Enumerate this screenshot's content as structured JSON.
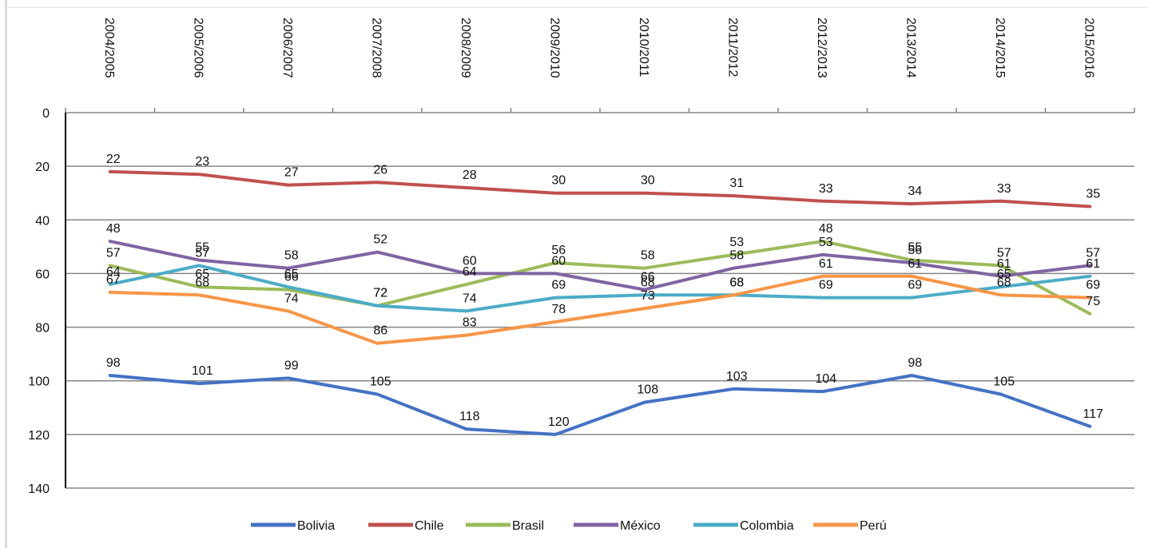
{
  "chart_data": {
    "type": "line",
    "title": "",
    "xlabel": "",
    "ylabel": "",
    "categories": [
      "2004/2005",
      "2005/2006",
      "2006/2007",
      "2007/2008",
      "2008/2009",
      "2009/2010",
      "2010/2011",
      "2011/2012",
      "2012/2013",
      "2013/2014",
      "2014/2015",
      "2015/2016"
    ],
    "ylim": [
      0,
      140
    ],
    "y_axis_reversed": true,
    "y_ticks": [
      0,
      20,
      40,
      60,
      80,
      100,
      120,
      140
    ],
    "grid": "horizontal",
    "legend_position": "bottom",
    "series": [
      {
        "name": "Bolivia",
        "color": "#4472c4",
        "values": [
          98,
          101,
          99,
          105,
          118,
          120,
          108,
          103,
          104,
          98,
          105,
          117
        ]
      },
      {
        "name": "Chile",
        "color": "#c0504d",
        "values": [
          22,
          23,
          27,
          26,
          28,
          30,
          30,
          31,
          33,
          34,
          33,
          35
        ]
      },
      {
        "name": "Brasil",
        "color": "#9bbb59",
        "values": [
          57,
          65,
          66,
          72,
          64,
          56,
          58,
          53,
          48,
          55,
          57,
          75
        ]
      },
      {
        "name": "México",
        "color": "#8064a2",
        "values": [
          48,
          55,
          58,
          52,
          60,
          60,
          66,
          58,
          53,
          56,
          61,
          57
        ]
      },
      {
        "name": "Colombia",
        "color": "#4bacc6",
        "values": [
          64,
          57,
          65,
          72,
          74,
          69,
          68,
          68,
          69,
          69,
          65,
          61
        ]
      },
      {
        "name": "Perú",
        "color": "#f79646",
        "values": [
          67,
          68,
          74,
          86,
          83,
          78,
          73,
          68,
          61,
          61,
          68,
          69
        ]
      }
    ]
  }
}
